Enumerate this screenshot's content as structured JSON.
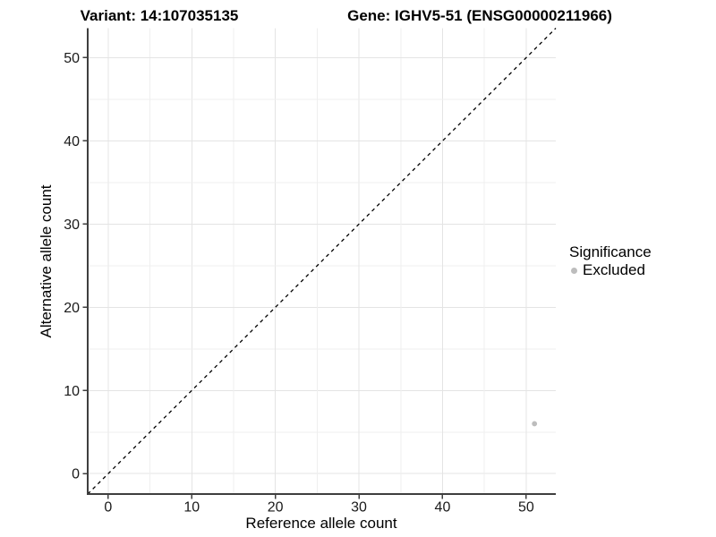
{
  "chart_data": {
    "type": "scatter",
    "titles": {
      "left": "Variant: 14:107035135",
      "right": "Gene: IGHV5-51 (ENSG00000211966)"
    },
    "xlabel": "Reference allele count",
    "ylabel": "Alternative allele count",
    "xlim": [
      -2.45,
      53.55
    ],
    "ylim": [
      -2.45,
      53.55
    ],
    "x_ticks": [
      0,
      10,
      20,
      30,
      40,
      50
    ],
    "y_ticks": [
      0,
      10,
      20,
      30,
      40,
      50
    ],
    "minor_grid_step": 5,
    "grid": true,
    "series": [
      {
        "name": "Excluded",
        "color": "#bdbdbd",
        "points": [
          {
            "x": 51,
            "y": 6
          }
        ]
      }
    ],
    "reference_line": {
      "type": "identity",
      "slope": 1,
      "intercept": 0,
      "style": "dashed",
      "color": "#000000"
    },
    "legend": {
      "title": "Significance",
      "position": "right",
      "items": [
        {
          "label": "Excluded",
          "color": "#bdbdbd"
        }
      ]
    },
    "colors": {
      "background": "#ffffff",
      "grid_major": "#e4e4e4",
      "grid_minor": "#efefef",
      "axis_line": "#3f3f3f",
      "tick_text": "#1a1a1a",
      "title_text": "#000000"
    }
  }
}
